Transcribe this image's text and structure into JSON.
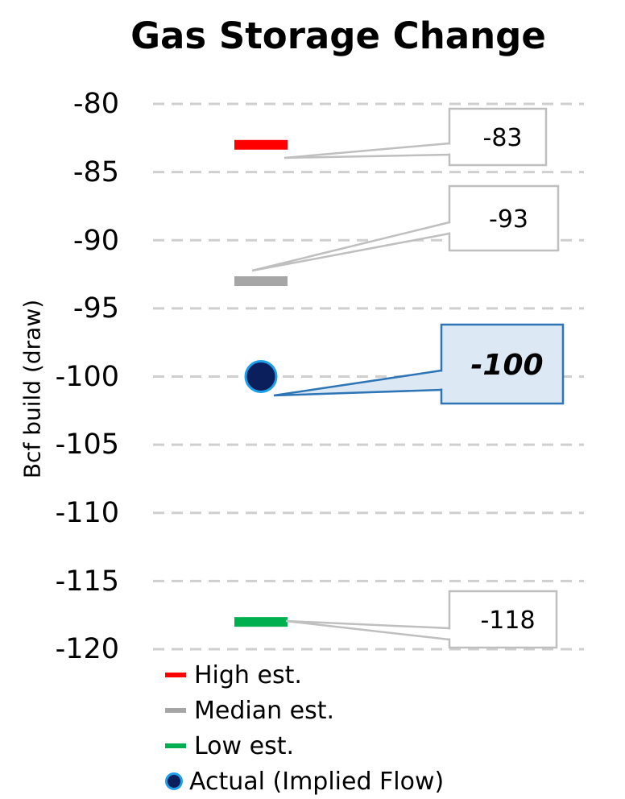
{
  "chart_data": {
    "type": "scatter",
    "title": "Gas Storage Change",
    "ylabel": "Bcf build (draw)",
    "ylim": [
      -120,
      -80
    ],
    "yticks": [
      "-80",
      "-85",
      "-90",
      "-95",
      "-100",
      "-105",
      "-110",
      "-115",
      "-120"
    ],
    "grid": true,
    "legend_position": "bottom",
    "series": [
      {
        "name": "High est.",
        "value": -83,
        "label": "-83",
        "marker": "dash",
        "color": "#ff0000"
      },
      {
        "name": "Median est.",
        "value": -93,
        "label": "-93",
        "marker": "dash",
        "color": "#a6a6a6"
      },
      {
        "name": "Low est.",
        "value": -118,
        "label": "-118",
        "marker": "dash",
        "color": "#00b050"
      },
      {
        "name": "Actual (Implied Flow)",
        "value": -100,
        "label": "-100",
        "marker": "circle",
        "color": "#0a1f5c",
        "edge_color": "#1ea0e8"
      }
    ]
  }
}
